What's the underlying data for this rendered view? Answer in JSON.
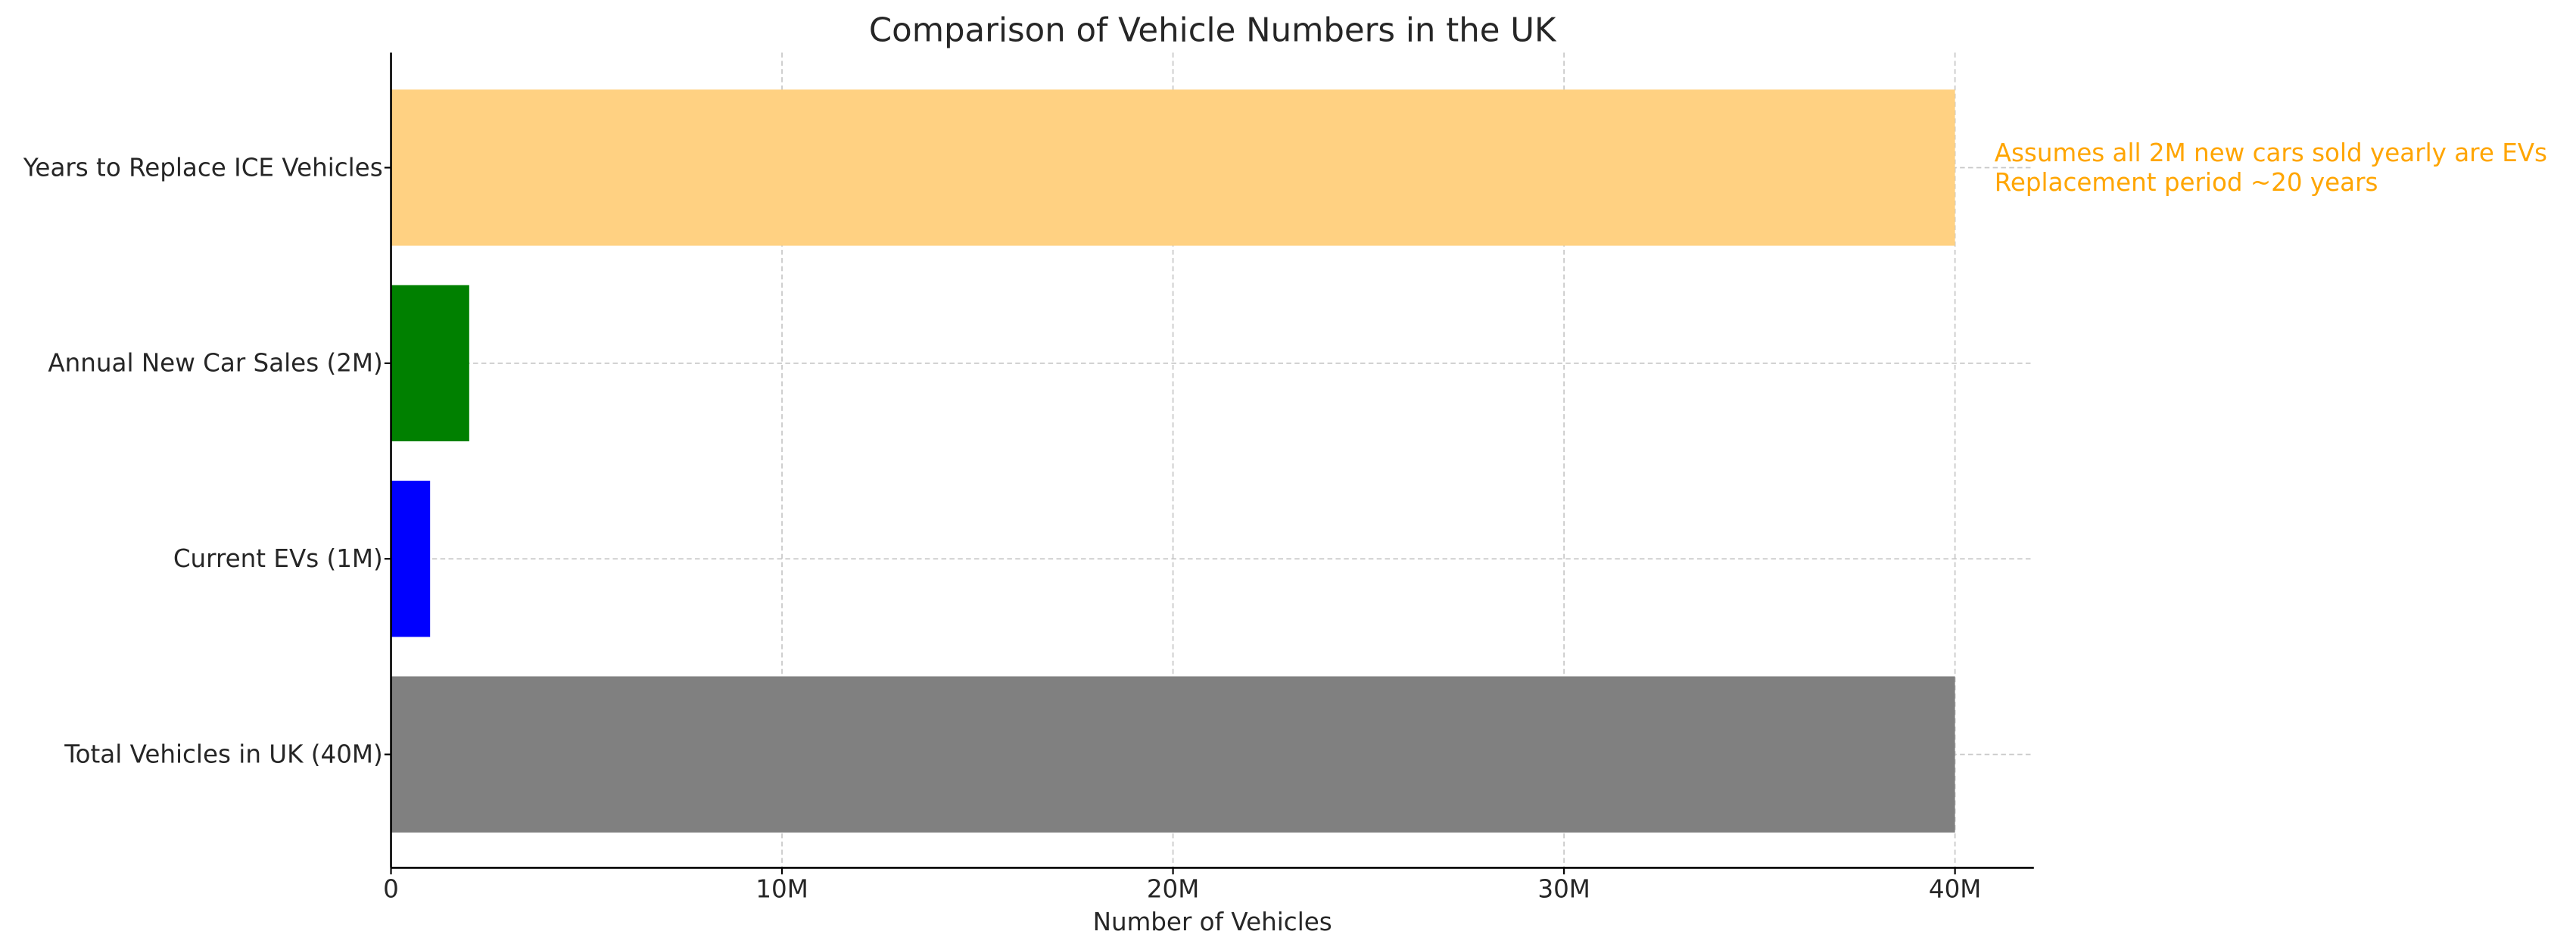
{
  "chart_data": {
    "type": "bar",
    "orientation": "horizontal",
    "title": "Comparison of Vehicle Numbers in the UK",
    "xlabel": "Number of Vehicles",
    "ylabel": "",
    "categories": [
      "Total Vehicles in UK (40M)",
      "Current EVs (1M)",
      "Annual New Car Sales (2M)",
      "Years to Replace ICE Vehicles"
    ],
    "values": [
      40000000,
      1000000,
      2000000,
      40000000
    ],
    "colors": [
      "#808080",
      "#0000ff",
      "#008000",
      "#ffd182"
    ],
    "xlim": [
      0,
      42000000
    ],
    "xticks": [
      0,
      10000000,
      20000000,
      30000000,
      40000000
    ],
    "xtick_labels": [
      "0",
      "10M",
      "20M",
      "30M",
      "40M"
    ],
    "grid": true,
    "annotation": {
      "lines": [
        "Assumes all 2M new cars sold yearly are EVs",
        "Replacement period ~20 years"
      ],
      "color": "#ffa500",
      "attached_to": "Years to Replace ICE Vehicles"
    }
  }
}
